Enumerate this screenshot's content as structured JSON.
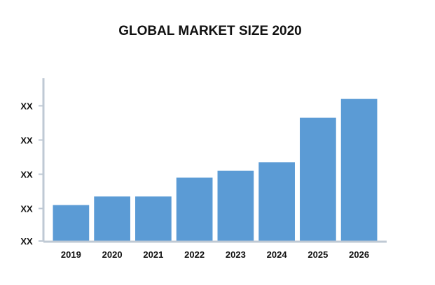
{
  "chart_data": {
    "type": "bar",
    "title": "GLOBAL MARKET SIZE 2020",
    "xlabel": "",
    "ylabel": "",
    "categories": [
      "2019",
      "2020",
      "2021",
      "2022",
      "2023",
      "2024",
      "2025",
      "2026"
    ],
    "values": [
      0.21,
      0.26,
      0.26,
      0.37,
      0.41,
      0.46,
      0.72,
      0.83
    ],
    "ylim": [
      0,
      1
    ],
    "y_tick_values": [
      0,
      0.19,
      0.39,
      0.59,
      0.79
    ],
    "y_tick_labels": [
      "XX",
      "XX",
      "XX",
      "XX",
      "XX"
    ],
    "bar_color": "#5b9bd5",
    "grid": false,
    "legend": "none"
  }
}
